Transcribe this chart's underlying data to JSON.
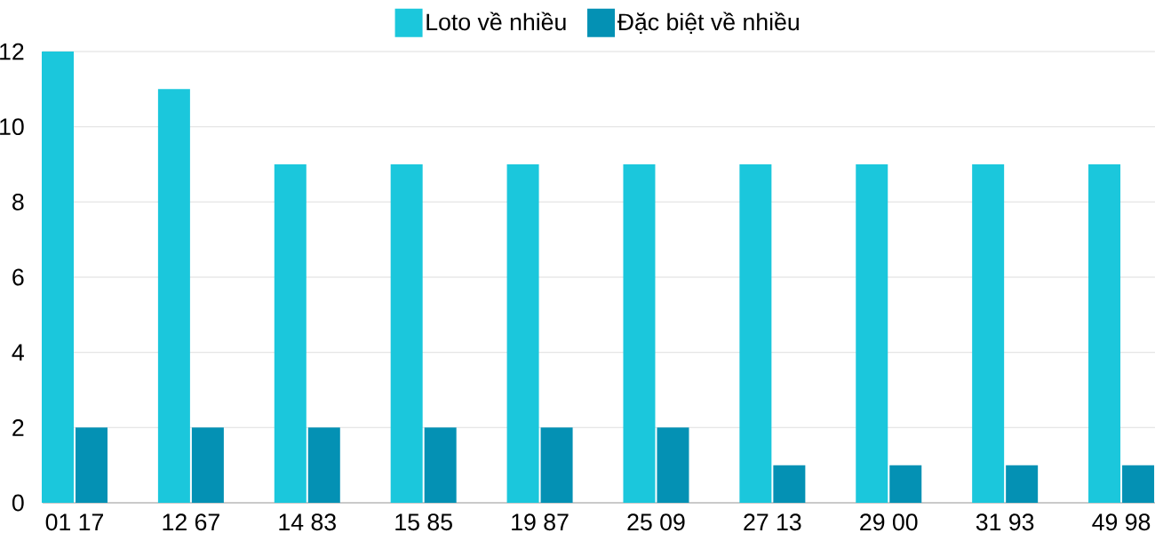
{
  "chart_data": {
    "type": "bar",
    "categories": [
      "01 17",
      "12 67",
      "14 83",
      "15 85",
      "19 87",
      "25 09",
      "27 13",
      "29 00",
      "31 93",
      "49 98"
    ],
    "series": [
      {
        "name": "Loto về nhiều",
        "color": "#1bc7dc",
        "values": [
          12,
          11,
          9,
          9,
          9,
          9,
          9,
          9,
          9,
          9
        ]
      },
      {
        "name": "Đặc biệt về nhiều",
        "color": "#0491b4",
        "values": [
          2,
          2,
          2,
          2,
          2,
          2,
          1,
          1,
          1,
          1
        ]
      }
    ],
    "ylim": [
      0,
      12
    ],
    "yticks": [
      0,
      2,
      4,
      6,
      8,
      10,
      12
    ],
    "grid": "y",
    "legend": "top"
  }
}
